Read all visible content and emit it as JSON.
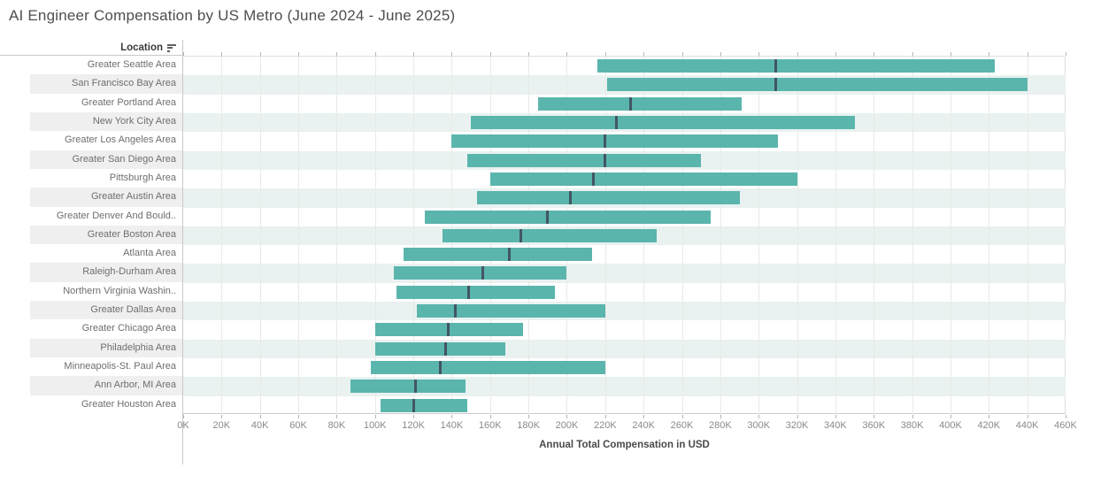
{
  "title": "AI Engineer Compensation by US Metro (June 2024 - June 2025)",
  "location_header": {
    "label": "Location",
    "sort_icon": "sort-descending-icon"
  },
  "colors": {
    "bar": "#5ab5ad",
    "median_line": "#425663",
    "plot_row_band": "#e9f2f0",
    "label_row_band": "#efefef"
  },
  "chart_data": {
    "type": "range-bar",
    "title": "AI Engineer Compensation by US Metro (June 2024 - June 2025)",
    "xlabel": "Annual Total Compensation in USD",
    "ylabel": "Location",
    "x_axis": {
      "min_k": 0,
      "max_k": 460,
      "step_k": 20,
      "unit": "thousand USD"
    },
    "x_tick_labels": [
      "0K",
      "20K",
      "40K",
      "60K",
      "80K",
      "100K",
      "120K",
      "140K",
      "160K",
      "180K",
      "200K",
      "220K",
      "240K",
      "260K",
      "280K",
      "300K",
      "320K",
      "340K",
      "360K",
      "380K",
      "400K",
      "420K",
      "440K",
      "460K"
    ],
    "grid": true,
    "rows": [
      {
        "location": "Greater Seattle Area",
        "low_k": 216,
        "median_k": 309,
        "high_k": 423
      },
      {
        "location": "San Francisco Bay Area",
        "low_k": 221,
        "median_k": 309,
        "high_k": 440
      },
      {
        "location": "Greater Portland Area",
        "low_k": 185,
        "median_k": 233,
        "high_k": 291
      },
      {
        "location": "New York City Area",
        "low_k": 150,
        "median_k": 226,
        "high_k": 350
      },
      {
        "location": "Greater Los Angeles Area",
        "low_k": 140,
        "median_k": 220,
        "high_k": 310
      },
      {
        "location": "Greater San Diego Area",
        "low_k": 148,
        "median_k": 220,
        "high_k": 270
      },
      {
        "location": "Pittsburgh Area",
        "low_k": 160,
        "median_k": 214,
        "high_k": 320
      },
      {
        "location": "Greater Austin Area",
        "low_k": 153,
        "median_k": 202,
        "high_k": 290
      },
      {
        "location": "Greater Denver And Bould..",
        "low_k": 126,
        "median_k": 190,
        "high_k": 275
      },
      {
        "location": "Greater Boston Area",
        "low_k": 135,
        "median_k": 176,
        "high_k": 247
      },
      {
        "location": "Atlanta Area",
        "low_k": 115,
        "median_k": 170,
        "high_k": 213
      },
      {
        "location": "Raleigh-Durham Area",
        "low_k": 110,
        "median_k": 156,
        "high_k": 200
      },
      {
        "location": "Northern Virginia Washin..",
        "low_k": 111,
        "median_k": 149,
        "high_k": 194
      },
      {
        "location": "Greater Dallas Area",
        "low_k": 122,
        "median_k": 142,
        "high_k": 220
      },
      {
        "location": "Greater Chicago Area",
        "low_k": 100,
        "median_k": 138,
        "high_k": 177
      },
      {
        "location": "Philadelphia Area",
        "low_k": 100,
        "median_k": 137,
        "high_k": 168
      },
      {
        "location": "Minneapolis-St. Paul Area",
        "low_k": 98,
        "median_k": 134,
        "high_k": 220
      },
      {
        "location": "Ann Arbor, MI Area",
        "low_k": 87,
        "median_k": 121,
        "high_k": 147
      },
      {
        "location": "Greater Houston Area",
        "low_k": 103,
        "median_k": 120,
        "high_k": 148
      }
    ]
  }
}
